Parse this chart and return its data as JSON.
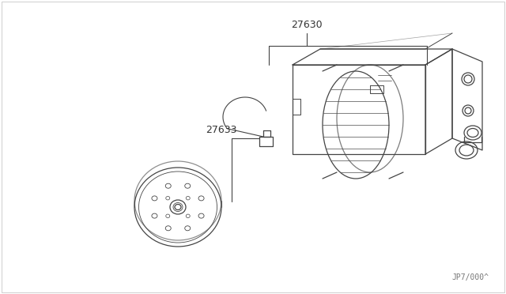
{
  "bg_color": "#ffffff",
  "line_color": "#444444",
  "label_color": "#333333",
  "part_numbers": [
    "27630",
    "27633"
  ],
  "watermark": "JP7/000^",
  "watermark_fontsize": 7,
  "label_fontsize": 9,
  "border_color": "#bbbbbb"
}
